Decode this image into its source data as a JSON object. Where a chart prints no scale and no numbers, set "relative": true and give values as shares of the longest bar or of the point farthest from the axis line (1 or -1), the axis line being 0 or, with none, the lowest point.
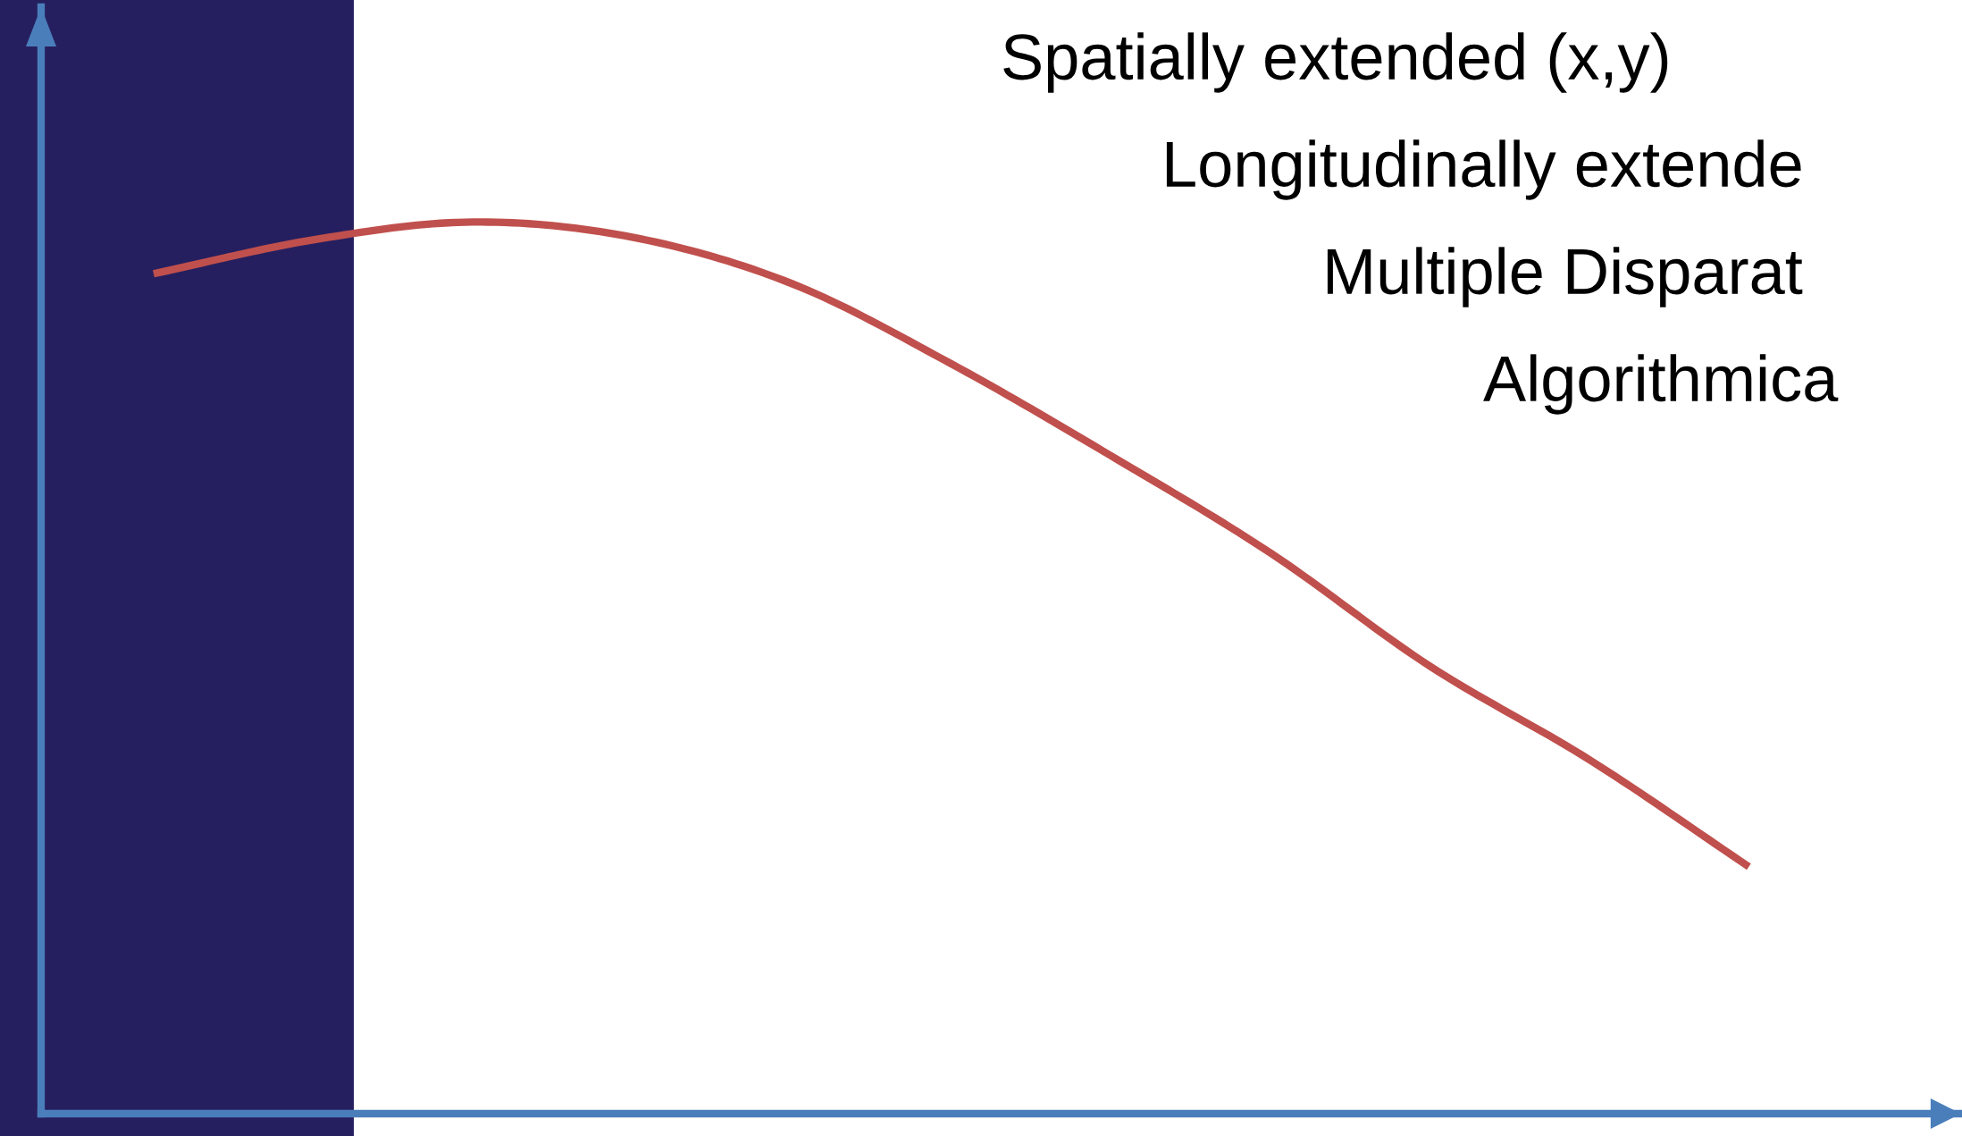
{
  "chart_data": {
    "type": "line",
    "relative": true,
    "categories": [
      null,
      null,
      null,
      null,
      null,
      null,
      null,
      null,
      null,
      null,
      null
    ],
    "series": [
      {
        "color": "#c0504d",
        "values": [
          0.942,
          0.98,
          1.0,
          0.983,
          0.931,
          0.841,
          0.738,
          0.629,
          0.502,
          0.397,
          0.277
        ]
      }
    ],
    "annotations": [
      "Spatially extended (x,y)",
      "Longitudinally extende",
      "Multiple Disparat",
      "Algorithmica"
    ],
    "grid": false,
    "legend": false,
    "marker": "none",
    "line_style": "solid"
  }
}
